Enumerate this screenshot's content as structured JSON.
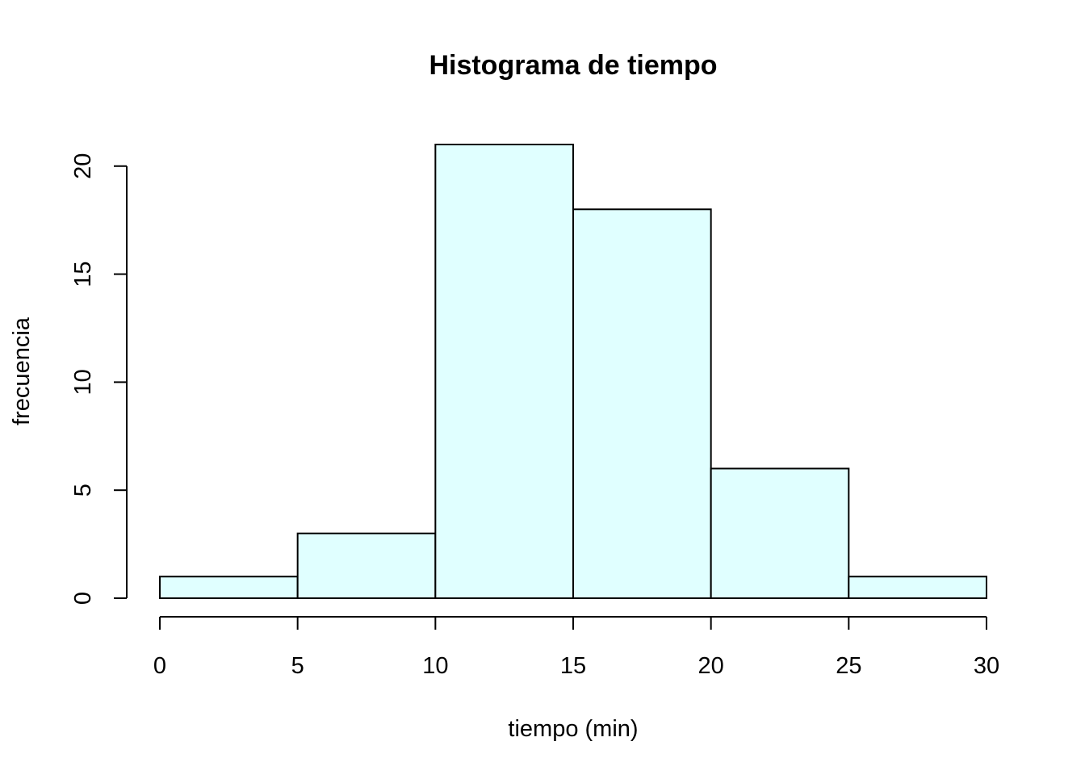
{
  "chart_data": {
    "type": "bar",
    "title": "Histograma de tiempo",
    "xlabel": "tiempo (min)",
    "ylabel": "frecuencia",
    "bins": [
      {
        "from": 0,
        "to": 5,
        "count": 1
      },
      {
        "from": 5,
        "to": 10,
        "count": 3
      },
      {
        "from": 10,
        "to": 15,
        "count": 21
      },
      {
        "from": 15,
        "to": 20,
        "count": 18
      },
      {
        "from": 20,
        "to": 25,
        "count": 6
      },
      {
        "from": 25,
        "to": 30,
        "count": 1
      }
    ],
    "x_ticks": [
      "0",
      "5",
      "10",
      "15",
      "20",
      "25",
      "30"
    ],
    "y_ticks": [
      "0",
      "5",
      "10",
      "15",
      "20"
    ],
    "xlim": [
      0,
      30
    ],
    "ylim": [
      0,
      21
    ],
    "grid": false,
    "bar_color": "#E0FFFF",
    "border_color": "#000000"
  }
}
